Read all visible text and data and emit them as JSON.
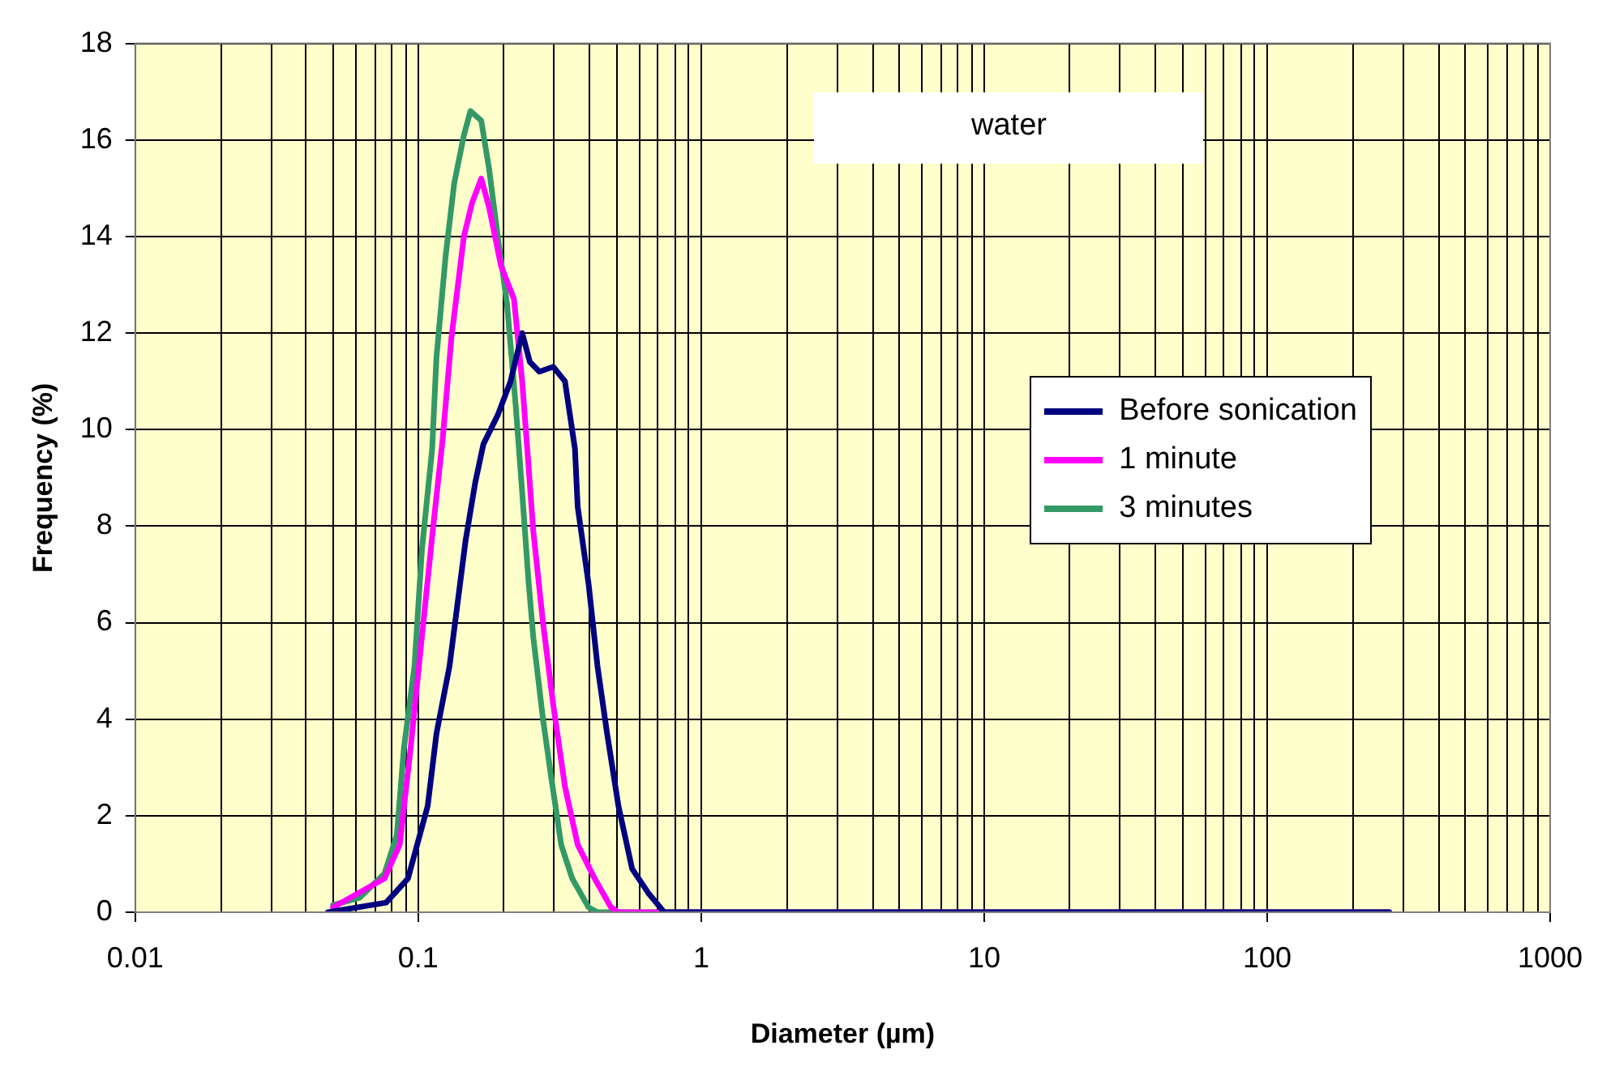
{
  "chart_data": {
    "type": "line",
    "xlabel": "Diameter (µm)",
    "ylabel": "Frequency (%)",
    "annotations": [
      "water"
    ],
    "log": "x",
    "grid": true,
    "legend": "right",
    "marker": "none",
    "line_style": "solid",
    "xlim": [
      0.01,
      1000
    ],
    "xticks": [
      0.01,
      0.1,
      1,
      10,
      100,
      1000
    ],
    "ylim": [
      0,
      18
    ],
    "yticks": [
      0,
      2,
      4,
      6,
      8,
      10,
      12,
      14,
      16,
      18
    ],
    "series": [
      {
        "name": "Before sonication",
        "color": "#000080",
        "x": [
          0.048,
          0.077,
          0.092,
          0.108,
          0.116,
          0.129,
          0.147,
          0.159,
          0.17,
          0.191,
          0.212,
          0.233,
          0.248,
          0.268,
          0.3,
          0.33,
          0.358,
          0.366,
          0.4,
          0.43,
          0.465,
          0.51,
          0.57,
          0.65,
          0.74,
          270
        ],
        "values": [
          0,
          0.2,
          0.7,
          2.2,
          3.7,
          5.1,
          7.7,
          8.9,
          9.7,
          10.3,
          11,
          12,
          11.4,
          11.2,
          11.3,
          11,
          9.6,
          8.4,
          6.8,
          5.1,
          3.7,
          2.2,
          0.9,
          0.4,
          0,
          0
        ]
      },
      {
        "name": "1 minute",
        "color": "#ff00ff",
        "x": [
          0.05,
          0.076,
          0.086,
          0.094,
          0.103,
          0.113,
          0.122,
          0.131,
          0.145,
          0.155,
          0.167,
          0.178,
          0.196,
          0.218,
          0.233,
          0.245,
          0.255,
          0.276,
          0.3,
          0.33,
          0.366,
          0.42,
          0.48,
          0.51,
          270
        ],
        "values": [
          0.1,
          0.7,
          1.4,
          3.4,
          5.7,
          8,
          9.8,
          11.9,
          14,
          14.7,
          15.2,
          14.6,
          13.4,
          12.7,
          11,
          9.3,
          7.9,
          6,
          4.3,
          2.6,
          1.4,
          0.7,
          0.1,
          0,
          0
        ]
      },
      {
        "name": "3 minutes",
        "color": "#339966",
        "x": [
          0.05,
          0.062,
          0.076,
          0.084,
          0.089,
          0.097,
          0.103,
          0.112,
          0.116,
          0.125,
          0.134,
          0.145,
          0.153,
          0.167,
          0.178,
          0.191,
          0.206,
          0.221,
          0.233,
          0.245,
          0.255,
          0.276,
          0.295,
          0.32,
          0.35,
          0.4,
          0.43,
          270
        ],
        "values": [
          0.15,
          0.3,
          0.8,
          1.6,
          3.4,
          5.1,
          7.5,
          9.6,
          11.5,
          13.6,
          15.1,
          16.1,
          16.6,
          16.4,
          15.4,
          14,
          12.6,
          10.5,
          8.7,
          6.9,
          5.7,
          4,
          2.8,
          1.4,
          0.7,
          0.1,
          0,
          0
        ]
      }
    ]
  }
}
